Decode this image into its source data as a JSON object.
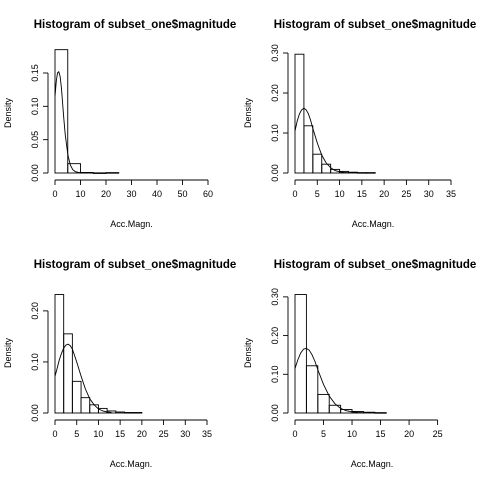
{
  "chart_data": [
    {
      "type": "bar",
      "title": "Histogram of subset_one$magnitude",
      "xlabel": "Acc.Magn.",
      "ylabel": "Density",
      "xlim": [
        0,
        60
      ],
      "ylim": [
        0,
        0.18
      ],
      "xticks": [
        "0",
        "10",
        "20",
        "30",
        "40",
        "50",
        "60"
      ],
      "yticks": [
        "0.00",
        "0.05",
        "0.10",
        "0.15"
      ],
      "bin_width": 5,
      "bins": [
        {
          "start": 0,
          "end": 5,
          "density": 0.185
        },
        {
          "start": 5,
          "end": 10,
          "density": 0.014
        },
        {
          "start": 10,
          "end": 15,
          "density": 0.0008
        },
        {
          "start": 15,
          "end": 20,
          "density": 0.0002
        },
        {
          "start": 20,
          "end": 25,
          "density": 0.0006
        }
      ],
      "curve": {
        "x": [
          0,
          0.5,
          1,
          1.5,
          2,
          2.5,
          3,
          3.5,
          4,
          5,
          6,
          7,
          8,
          9,
          10
        ],
        "y": [
          0.115,
          0.138,
          0.15,
          0.152,
          0.145,
          0.128,
          0.105,
          0.08,
          0.058,
          0.028,
          0.012,
          0.005,
          0.002,
          0.001,
          0.0005
        ]
      }
    },
    {
      "type": "bar",
      "title": "Histogram of subset_one$magnitude",
      "xlabel": "Acc.Magn.",
      "ylabel": "Density",
      "xlim": [
        0,
        35
      ],
      "ylim": [
        0,
        0.3
      ],
      "xticks": [
        "0",
        "5",
        "10",
        "15",
        "20",
        "25",
        "30",
        "35"
      ],
      "yticks": [
        "0.00",
        "0.10",
        "0.20",
        "0.30"
      ],
      "bin_width": 2,
      "bins": [
        {
          "start": 0,
          "end": 2,
          "density": 0.297
        },
        {
          "start": 2,
          "end": 4,
          "density": 0.118
        },
        {
          "start": 4,
          "end": 6,
          "density": 0.047
        },
        {
          "start": 6,
          "end": 8,
          "density": 0.022
        },
        {
          "start": 8,
          "end": 10,
          "density": 0.009
        },
        {
          "start": 10,
          "end": 12,
          "density": 0.004
        },
        {
          "start": 12,
          "end": 14,
          "density": 0.002
        },
        {
          "start": 14,
          "end": 16,
          "density": 0.001
        },
        {
          "start": 16,
          "end": 18,
          "density": 0.001
        }
      ],
      "curve": {
        "x": [
          0,
          0.5,
          1,
          1.5,
          2,
          2.5,
          3,
          3.5,
          4,
          5,
          6,
          7,
          8,
          9,
          10,
          11,
          12
        ],
        "y": [
          0.105,
          0.13,
          0.148,
          0.158,
          0.162,
          0.158,
          0.148,
          0.132,
          0.112,
          0.075,
          0.045,
          0.025,
          0.013,
          0.006,
          0.003,
          0.0015,
          0.0008
        ]
      }
    },
    {
      "type": "bar",
      "title": "Histogram of subset_one$magnitude",
      "xlabel": "Acc.Magn.",
      "ylabel": "Density",
      "xlim": [
        0,
        35
      ],
      "ylim": [
        0,
        0.235
      ],
      "xticks": [
        "0",
        "5",
        "10",
        "15",
        "20",
        "25",
        "30",
        "35"
      ],
      "yticks": [
        "0.00",
        "0.10",
        "0.20"
      ],
      "bin_width": 2,
      "bins": [
        {
          "start": 0,
          "end": 2,
          "density": 0.232
        },
        {
          "start": 2,
          "end": 4,
          "density": 0.155
        },
        {
          "start": 4,
          "end": 6,
          "density": 0.062
        },
        {
          "start": 6,
          "end": 8,
          "density": 0.03
        },
        {
          "start": 8,
          "end": 10,
          "density": 0.016
        },
        {
          "start": 10,
          "end": 12,
          "density": 0.009
        },
        {
          "start": 12,
          "end": 14,
          "density": 0.004
        },
        {
          "start": 14,
          "end": 16,
          "density": 0.002
        },
        {
          "start": 16,
          "end": 18,
          "density": 0.001
        },
        {
          "start": 18,
          "end": 20,
          "density": 0.001
        }
      ],
      "curve": {
        "x": [
          0,
          0.5,
          1,
          1.5,
          2,
          2.5,
          3,
          3.5,
          4,
          5,
          6,
          7,
          8,
          9,
          10,
          11,
          12,
          13
        ],
        "y": [
          0.072,
          0.088,
          0.104,
          0.117,
          0.127,
          0.133,
          0.135,
          0.132,
          0.125,
          0.1,
          0.072,
          0.047,
          0.028,
          0.016,
          0.008,
          0.004,
          0.002,
          0.001
        ]
      }
    },
    {
      "type": "bar",
      "title": "Histogram of subset_one$magnitude",
      "xlabel": "Acc.Magn.",
      "ylabel": "Density",
      "xlim": [
        0,
        27
      ],
      "ylim": [
        0,
        0.31
      ],
      "xticks": [
        "0",
        "5",
        "10",
        "15",
        "20",
        "25"
      ],
      "yticks": [
        "0.00",
        "0.10",
        "0.20",
        "0.30"
      ],
      "bin_width": 2,
      "bins": [
        {
          "start": 0,
          "end": 2,
          "density": 0.306
        },
        {
          "start": 2,
          "end": 4,
          "density": 0.122
        },
        {
          "start": 4,
          "end": 6,
          "density": 0.048
        },
        {
          "start": 6,
          "end": 8,
          "density": 0.02
        },
        {
          "start": 8,
          "end": 10,
          "density": 0.009
        },
        {
          "start": 10,
          "end": 12,
          "density": 0.004
        },
        {
          "start": 12,
          "end": 14,
          "density": 0.002
        },
        {
          "start": 14,
          "end": 16,
          "density": 0.001
        }
      ],
      "curve": {
        "x": [
          0,
          0.5,
          1,
          1.5,
          2,
          2.5,
          3,
          3.5,
          4,
          5,
          6,
          7,
          8,
          9,
          10,
          11,
          12
        ],
        "y": [
          0.115,
          0.138,
          0.155,
          0.165,
          0.167,
          0.162,
          0.15,
          0.133,
          0.112,
          0.074,
          0.044,
          0.024,
          0.012,
          0.006,
          0.003,
          0.0014,
          0.0007
        ]
      }
    }
  ]
}
